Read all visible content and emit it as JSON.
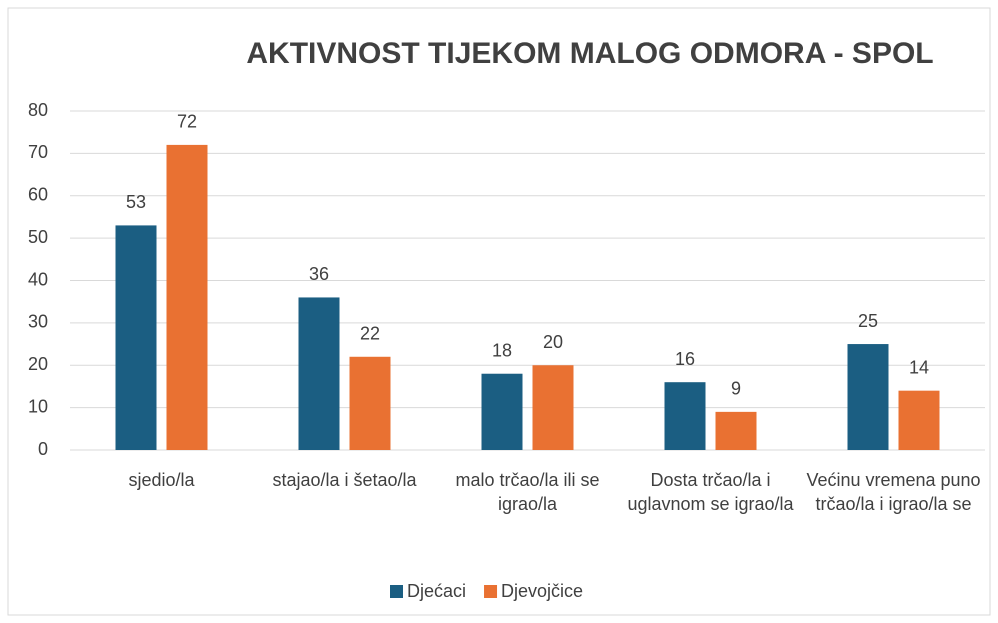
{
  "chart_data": {
    "type": "bar",
    "title": "AKTIVNOST TIJEKOM MALOG ODMORA - SPOL",
    "categories": [
      "sjedio/la",
      "stajao/la i šetao/la",
      "malo trčao/la ili se igrao/la",
      "Dosta trčao/la i uglavnom se igrao/la",
      "Većinu vremena puno trčao/la i igrao/la se"
    ],
    "series": [
      {
        "name": "Djećaci",
        "color": "#1b5e82",
        "values": [
          53,
          36,
          18,
          16,
          25
        ]
      },
      {
        "name": "Djevojčice",
        "color": "#e97132",
        "values": [
          72,
          22,
          20,
          9,
          14
        ]
      }
    ],
    "ylim": [
      0,
      80
    ],
    "yticks": [
      0,
      10,
      20,
      30,
      40,
      50,
      60,
      70,
      80
    ],
    "grid": true,
    "legend": "bottom"
  }
}
